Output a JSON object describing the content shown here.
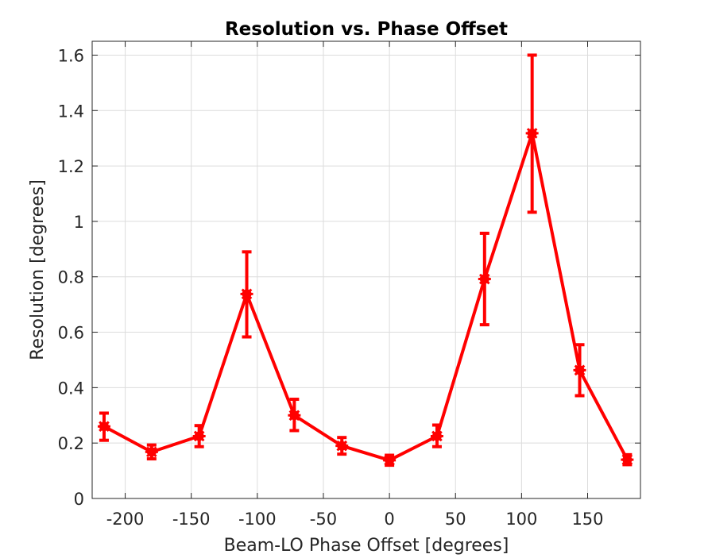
{
  "chart_data": {
    "type": "line",
    "title": "Resolution vs. Phase Offset",
    "xlabel": "Beam-LO Phase Offset [degrees]",
    "ylabel": "Resolution [degrees]",
    "xlim": [
      -225,
      190
    ],
    "ylim": [
      0,
      1.65
    ],
    "grid": true,
    "x_ticks": [
      -200,
      -150,
      -100,
      -50,
      0,
      50,
      100,
      150
    ],
    "x_tick_labels": [
      "-200",
      "-150",
      "-100",
      "-50",
      "0",
      "50",
      "100",
      "150"
    ],
    "y_ticks": [
      0,
      0.2,
      0.4,
      0.6,
      0.8,
      1,
      1.2,
      1.4,
      1.6
    ],
    "y_tick_labels": [
      "0",
      "0.2",
      "0.4",
      "0.6",
      "0.8",
      "1",
      "1.2",
      "1.4",
      "1.6"
    ],
    "series": [
      {
        "color": "#ff0000",
        "marker": "asterisk",
        "x": [
          -216,
          -180,
          -144,
          -108,
          -72,
          -36,
          0,
          36,
          72,
          108,
          144,
          180
        ],
        "y": [
          0.26,
          0.168,
          0.225,
          0.738,
          0.3,
          0.19,
          0.138,
          0.225,
          0.792,
          1.318,
          0.463,
          0.14
        ],
        "err_low": [
          0.05,
          0.025,
          0.038,
          0.155,
          0.055,
          0.03,
          0.018,
          0.038,
          0.165,
          0.285,
          0.092,
          0.018
        ],
        "err_high": [
          0.048,
          0.025,
          0.038,
          0.152,
          0.058,
          0.03,
          0.018,
          0.04,
          0.165,
          0.282,
          0.092,
          0.018
        ]
      }
    ]
  }
}
